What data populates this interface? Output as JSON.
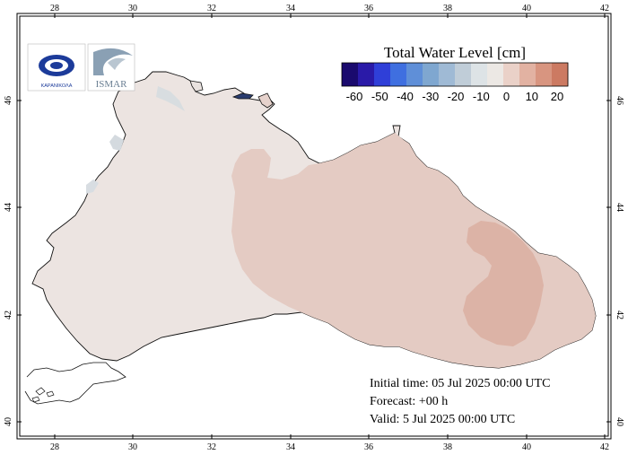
{
  "map": {
    "title": "Total Water Level [cm]",
    "longitude_ticks": [
      "28",
      "30",
      "32",
      "34",
      "36",
      "38",
      "40",
      "42"
    ],
    "latitude_ticks": [
      "40",
      "42",
      "44",
      "46"
    ],
    "legend": {
      "ticks": [
        "-60",
        "-50",
        "-40",
        "-30",
        "-20",
        "-10",
        "0",
        "10",
        "20"
      ],
      "colors": [
        "#1a0a6e",
        "#2a1aa8",
        "#2f3fd8",
        "#3f6fe0",
        "#5f8fd8",
        "#7fa7d0",
        "#9fbad5",
        "#c0cdd8",
        "#dde3e6",
        "#ece8e4",
        "#ead1c8",
        "#e2b2a2",
        "#d89580",
        "#cc7a62"
      ]
    },
    "logos": {
      "logo1_text": "ΚΑΡΑΝΙΚΟΛΑ",
      "logo2_text": "ISMAR"
    }
  },
  "forecast": {
    "initial": "Initial time: 05 Jul 2025 00:00 UTC",
    "forecast": "Forecast: +00 h",
    "valid": "Valid:  5 Jul 2025 00:00 UTC"
  }
}
